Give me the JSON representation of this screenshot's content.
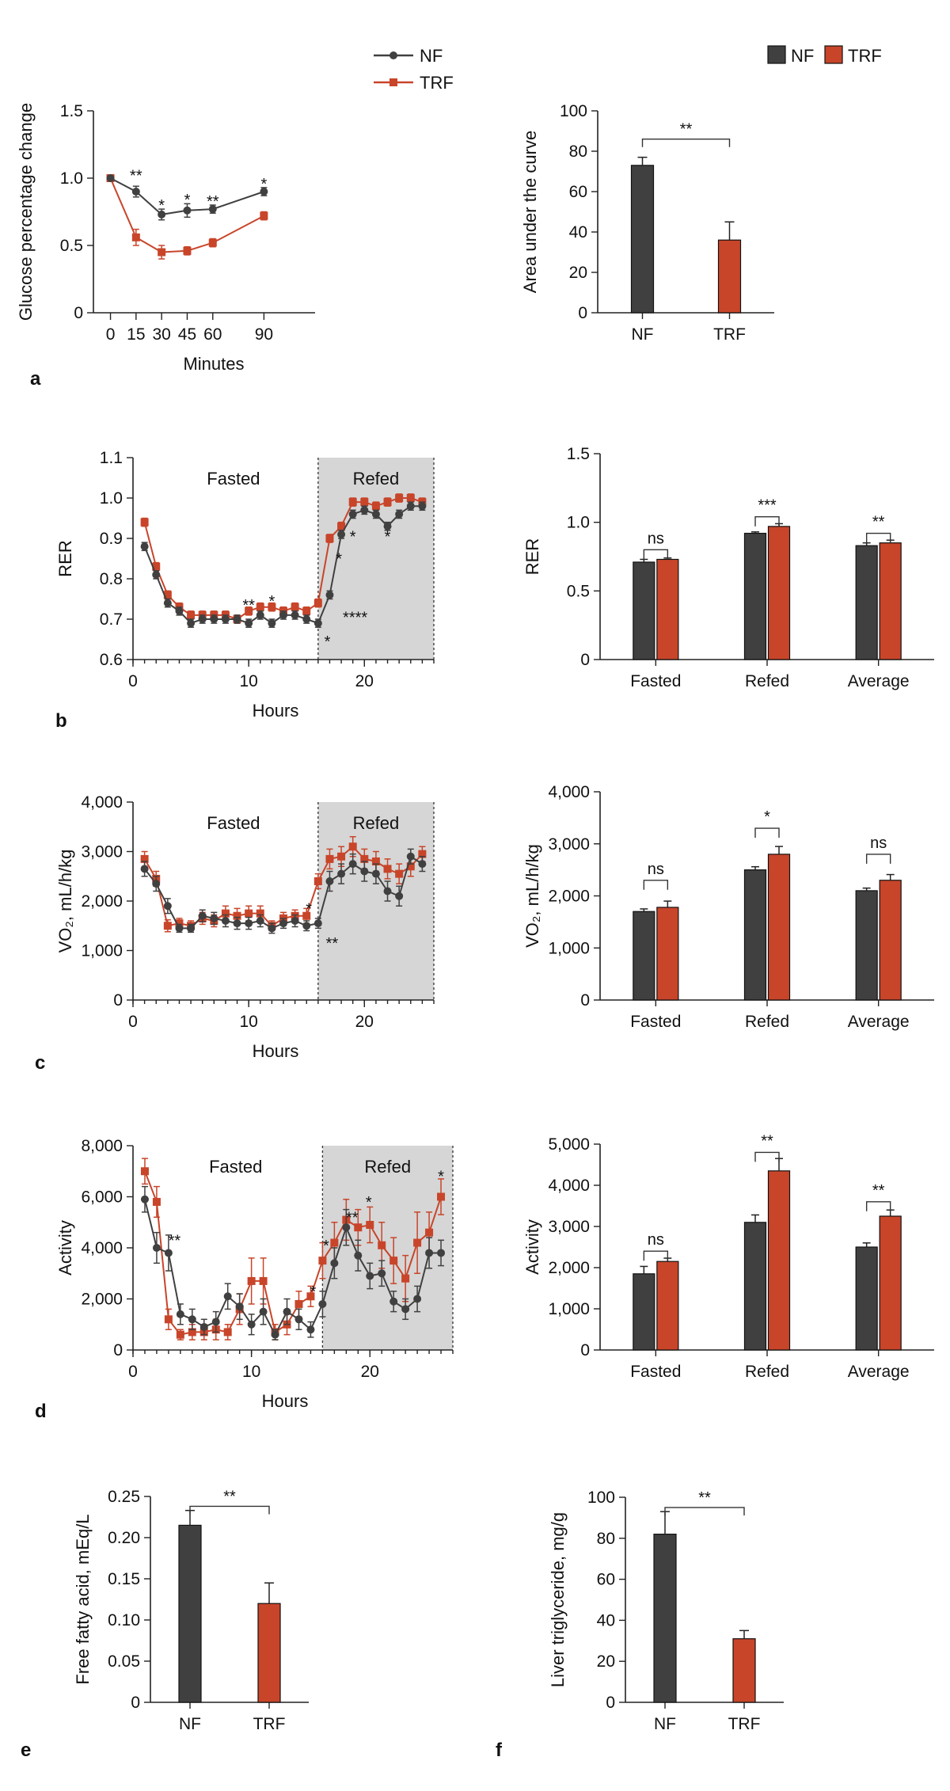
{
  "colors": {
    "NF": "#404040",
    "TRF": "#c8452a",
    "refed_shade": "#d6d6d6"
  },
  "legend_line": {
    "entries": [
      "NF",
      "TRF"
    ]
  },
  "legend_bar": {
    "entries": [
      "NF",
      "TRF"
    ]
  },
  "chart_data": [
    {
      "id": "a-line",
      "panel": "a",
      "type": "line",
      "xlabel": "Minutes",
      "ylabel": "Glucose percentage change",
      "xlim": [
        -10,
        120
      ],
      "ylim": [
        0,
        1.5
      ],
      "xticks": [
        0,
        15,
        30,
        45,
        60,
        90
      ],
      "xtick_labels": [
        "0",
        "15",
        "30",
        "45",
        "60",
        "90"
      ],
      "yticks": [
        0,
        0.5,
        1.0,
        1.5
      ],
      "ytick_labels": [
        "0",
        "0.5",
        "1.0",
        "1.5"
      ],
      "series": [
        {
          "name": "NF",
          "x": [
            0,
            15,
            30,
            45,
            60,
            90
          ],
          "y": [
            1.0,
            0.9,
            0.73,
            0.76,
            0.77,
            0.9
          ],
          "err": [
            0,
            0.04,
            0.04,
            0.05,
            0.03,
            0.03
          ]
        },
        {
          "name": "TRF",
          "x": [
            0,
            15,
            30,
            45,
            60,
            90
          ],
          "y": [
            1.0,
            0.56,
            0.45,
            0.46,
            0.52,
            0.72
          ],
          "err": [
            0,
            0.06,
            0.05,
            0.03,
            0.03,
            0.03
          ]
        }
      ],
      "annotations": [
        {
          "x": 15,
          "y": 1.02,
          "text": "**"
        },
        {
          "x": 30,
          "y": 0.8,
          "text": "*"
        },
        {
          "x": 45,
          "y": 0.84,
          "text": "*"
        },
        {
          "x": 60,
          "y": 0.83,
          "text": "**"
        },
        {
          "x": 90,
          "y": 0.96,
          "text": "*"
        }
      ]
    },
    {
      "id": "a-bar",
      "panel": "a",
      "type": "bar",
      "ylabel": "Area under the curve",
      "ylim": [
        0,
        100
      ],
      "yticks": [
        0,
        20,
        40,
        60,
        80,
        100
      ],
      "ytick_labels": [
        "0",
        "20",
        "40",
        "60",
        "80",
        "100"
      ],
      "categories": [
        "NF",
        "TRF"
      ],
      "values": [
        73,
        36
      ],
      "err": [
        4,
        9
      ],
      "brackets": [
        {
          "from": 0,
          "to": 1,
          "y": 86,
          "text": "**"
        }
      ]
    },
    {
      "id": "b-line",
      "panel": "b",
      "type": "line",
      "xlabel": "Hours",
      "ylabel": "RER",
      "xlim": [
        0,
        26
      ],
      "ylim": [
        0.6,
        1.1
      ],
      "xticks": [
        0,
        10,
        20
      ],
      "xtick_labels": [
        "0",
        "10",
        "20"
      ],
      "yticks": [
        0.6,
        0.7,
        0.8,
        0.9,
        1.0,
        1.1
      ],
      "ytick_labels": [
        "0.6",
        "0.7",
        "0.8",
        "0.9",
        "1.0",
        "1.1"
      ],
      "region_labels": {
        "fasted": "Fasted",
        "refed": "Refed"
      },
      "refed_span": [
        16,
        26
      ],
      "series": [
        {
          "name": "NF",
          "x": [
            1,
            2,
            3,
            4,
            5,
            6,
            7,
            8,
            9,
            10,
            11,
            12,
            13,
            14,
            15,
            16,
            17,
            18,
            19,
            20,
            21,
            22,
            23,
            24,
            25
          ],
          "y": [
            0.88,
            0.81,
            0.74,
            0.72,
            0.69,
            0.7,
            0.7,
            0.7,
            0.7,
            0.69,
            0.71,
            0.69,
            0.71,
            0.71,
            0.7,
            0.69,
            0.76,
            0.91,
            0.96,
            0.97,
            0.96,
            0.93,
            0.96,
            0.98,
            0.98
          ],
          "err": [
            0.01,
            0.01,
            0.01,
            0.01,
            0.01,
            0.01,
            0.01,
            0.01,
            0.01,
            0.01,
            0.01,
            0.01,
            0.01,
            0.01,
            0.01,
            0.01,
            0.01,
            0.01,
            0.01,
            0.01,
            0.01,
            0.01,
            0.01,
            0.01,
            0.01
          ]
        },
        {
          "name": "TRF",
          "x": [
            1,
            2,
            3,
            4,
            5,
            6,
            7,
            8,
            9,
            10,
            11,
            12,
            13,
            14,
            15,
            16,
            17,
            18,
            19,
            20,
            21,
            22,
            23,
            24,
            25
          ],
          "y": [
            0.94,
            0.83,
            0.76,
            0.73,
            0.71,
            0.71,
            0.71,
            0.71,
            0.7,
            0.72,
            0.73,
            0.73,
            0.72,
            0.73,
            0.72,
            0.74,
            0.9,
            0.93,
            0.99,
            0.99,
            0.98,
            0.99,
            1.0,
            1.0,
            0.99
          ],
          "err": [
            0.01,
            0.01,
            0.01,
            0.01,
            0.01,
            0.01,
            0.01,
            0.01,
            0.01,
            0.01,
            0.01,
            0.01,
            0.01,
            0.01,
            0.01,
            0.01,
            0.01,
            0.01,
            0.01,
            0.01,
            0.01,
            0.01,
            0.01,
            0.01,
            0.01
          ]
        }
      ],
      "annotations": [
        {
          "x": 10,
          "y": 0.735,
          "text": "**"
        },
        {
          "x": 12,
          "y": 0.745,
          "text": "*"
        },
        {
          "x": 17.8,
          "y": 0.85,
          "text": "*"
        },
        {
          "x": 19,
          "y": 0.905,
          "text": "*"
        },
        {
          "x": 22,
          "y": 0.905,
          "text": "*"
        },
        {
          "x": 19.2,
          "y": 0.705,
          "text": "****"
        },
        {
          "x": 16.8,
          "y": 0.645,
          "text": "*"
        }
      ]
    },
    {
      "id": "b-bar",
      "panel": "b",
      "type": "bar",
      "ylabel": "RER",
      "ylim": [
        0,
        1.5
      ],
      "yticks": [
        0,
        0.5,
        1.0,
        1.5
      ],
      "ytick_labels": [
        "0",
        "0.5",
        "1.0",
        "1.5"
      ],
      "categories": [
        "Fasted",
        "Refed",
        "Average"
      ],
      "series": [
        {
          "name": "NF",
          "values": [
            0.71,
            0.92,
            0.83
          ],
          "err": [
            0.02,
            0.01,
            0.02
          ]
        },
        {
          "name": "TRF",
          "values": [
            0.73,
            0.97,
            0.85
          ],
          "err": [
            0.01,
            0.02,
            0.02
          ]
        }
      ],
      "brackets": [
        {
          "group": 0,
          "y": 0.8,
          "text": "ns"
        },
        {
          "group": 1,
          "y": 1.04,
          "text": "***"
        },
        {
          "group": 2,
          "y": 0.92,
          "text": "**"
        }
      ]
    },
    {
      "id": "c-line",
      "panel": "c",
      "type": "line",
      "xlabel": "Hours",
      "ylabel": "VO₂, mL/h/kg",
      "xlim": [
        0,
        26
      ],
      "ylim": [
        0,
        4000
      ],
      "xticks": [
        0,
        10,
        20
      ],
      "xtick_labels": [
        "0",
        "10",
        "20"
      ],
      "yticks": [
        0,
        1000,
        2000,
        3000,
        4000
      ],
      "ytick_labels": [
        "0",
        "1,000",
        "2,000",
        "3,000",
        "4,000"
      ],
      "region_labels": {
        "fasted": "Fasted",
        "refed": "Refed"
      },
      "refed_span": [
        16,
        26
      ],
      "series": [
        {
          "name": "NF",
          "x": [
            1,
            2,
            3,
            4,
            5,
            6,
            7,
            8,
            9,
            10,
            11,
            12,
            13,
            14,
            15,
            16,
            17,
            18,
            19,
            20,
            21,
            22,
            23,
            24,
            25
          ],
          "y": [
            2650,
            2350,
            1900,
            1450,
            1450,
            1700,
            1650,
            1600,
            1550,
            1550,
            1600,
            1450,
            1550,
            1600,
            1500,
            1550,
            2400,
            2550,
            2750,
            2600,
            2550,
            2200,
            2100,
            2900,
            2750
          ],
          "err": [
            150,
            150,
            150,
            80,
            80,
            120,
            120,
            120,
            120,
            120,
            120,
            100,
            100,
            120,
            100,
            100,
            200,
            200,
            200,
            200,
            200,
            200,
            200,
            150,
            150
          ]
        },
        {
          "name": "TRF",
          "x": [
            1,
            2,
            3,
            4,
            5,
            6,
            7,
            8,
            9,
            10,
            11,
            12,
            13,
            14,
            15,
            16,
            17,
            18,
            19,
            20,
            21,
            22,
            23,
            24,
            25
          ],
          "y": [
            2850,
            2450,
            1500,
            1550,
            1500,
            1650,
            1600,
            1750,
            1700,
            1750,
            1750,
            1500,
            1650,
            1700,
            1700,
            2400,
            2850,
            2900,
            3100,
            2850,
            2800,
            2650,
            2550,
            2700,
            2950
          ],
          "err": [
            150,
            150,
            120,
            100,
            100,
            120,
            120,
            150,
            150,
            150,
            150,
            100,
            120,
            120,
            150,
            150,
            200,
            200,
            200,
            200,
            200,
            200,
            200,
            200,
            150
          ]
        }
      ],
      "annotations": [
        {
          "x": 15.2,
          "y": 1850,
          "text": "*"
        },
        {
          "x": 17.2,
          "y": 1150,
          "text": "**"
        }
      ]
    },
    {
      "id": "c-bar",
      "panel": "c",
      "type": "bar",
      "ylabel": "VO₂, mL/h/kg",
      "ylim": [
        0,
        4000
      ],
      "yticks": [
        0,
        1000,
        2000,
        3000,
        4000
      ],
      "ytick_labels": [
        "0",
        "1,000",
        "2,000",
        "3,000",
        "4,000"
      ],
      "categories": [
        "Fasted",
        "Refed",
        "Average"
      ],
      "series": [
        {
          "name": "NF",
          "values": [
            1700,
            2500,
            2100
          ],
          "err": [
            50,
            60,
            50
          ]
        },
        {
          "name": "TRF",
          "values": [
            1780,
            2800,
            2300
          ],
          "err": [
            120,
            150,
            110
          ]
        }
      ],
      "brackets": [
        {
          "group": 0,
          "y": 2300,
          "text": "ns"
        },
        {
          "group": 1,
          "y": 3300,
          "text": "*"
        },
        {
          "group": 2,
          "y": 2800,
          "text": "ns"
        }
      ]
    },
    {
      "id": "d-line",
      "panel": "d",
      "type": "line",
      "xlabel": "Hours",
      "ylabel": "Activity",
      "xlim": [
        0,
        27
      ],
      "ylim": [
        0,
        8000
      ],
      "xticks": [
        0,
        10,
        20
      ],
      "xtick_labels": [
        "0",
        "10",
        "20"
      ],
      "yticks": [
        0,
        2000,
        4000,
        6000,
        8000
      ],
      "ytick_labels": [
        "0",
        "2,000",
        "4,000",
        "6,000",
        "8,000"
      ],
      "region_labels": {
        "fasted": "Fasted",
        "refed": "Refed"
      },
      "refed_span": [
        16,
        27
      ],
      "series": [
        {
          "name": "NF",
          "x": [
            1,
            2,
            3,
            4,
            5,
            6,
            7,
            8,
            9,
            10,
            11,
            12,
            13,
            14,
            15,
            16,
            17,
            18,
            19,
            20,
            21,
            22,
            23,
            24,
            25,
            26
          ],
          "y": [
            5900,
            4000,
            3800,
            1400,
            1200,
            900,
            1100,
            2100,
            1700,
            1000,
            1500,
            600,
            1500,
            1200,
            800,
            1800,
            3400,
            4800,
            3700,
            2900,
            3000,
            1900,
            1600,
            2000,
            3800,
            3800
          ],
          "err": [
            500,
            600,
            700,
            400,
            400,
            300,
            400,
            500,
            500,
            400,
            500,
            200,
            500,
            400,
            300,
            500,
            600,
            700,
            600,
            500,
            500,
            400,
            400,
            500,
            600,
            500
          ]
        },
        {
          "name": "TRF",
          "x": [
            1,
            2,
            3,
            4,
            5,
            6,
            7,
            8,
            9,
            10,
            11,
            12,
            13,
            14,
            15,
            16,
            17,
            18,
            19,
            20,
            21,
            22,
            23,
            24,
            25,
            26
          ],
          "y": [
            7000,
            5800,
            1200,
            600,
            700,
            700,
            800,
            700,
            1600,
            2700,
            2700,
            700,
            1000,
            1800,
            2100,
            3500,
            4200,
            5100,
            4800,
            4900,
            4100,
            3500,
            2800,
            4200,
            4600,
            6000
          ],
          "err": [
            500,
            600,
            400,
            200,
            300,
            300,
            400,
            300,
            600,
            900,
            900,
            300,
            400,
            500,
            400,
            700,
            800,
            800,
            700,
            700,
            900,
            900,
            900,
            1200,
            800,
            700
          ]
        }
      ],
      "annotations": [
        {
          "x": 3.5,
          "y": 4300,
          "text": "**"
        },
        {
          "x": 15.2,
          "y": 2300,
          "text": "*"
        },
        {
          "x": 16.3,
          "y": 4100,
          "text": "*"
        },
        {
          "x": 18.5,
          "y": 5200,
          "text": "**"
        },
        {
          "x": 19.9,
          "y": 5800,
          "text": "*"
        },
        {
          "x": 26,
          "y": 6800,
          "text": "*"
        }
      ]
    },
    {
      "id": "d-bar",
      "panel": "d",
      "type": "bar",
      "ylabel": "Activity",
      "ylim": [
        0,
        5000
      ],
      "yticks": [
        0,
        1000,
        2000,
        3000,
        4000,
        5000
      ],
      "ytick_labels": [
        "0",
        "1,000",
        "2,000",
        "3,000",
        "4,000",
        "5,000"
      ],
      "categories": [
        "Fasted",
        "Refed",
        "Average"
      ],
      "series": [
        {
          "name": "NF",
          "values": [
            1850,
            3100,
            2500
          ],
          "err": [
            180,
            180,
            100
          ]
        },
        {
          "name": "TRF",
          "values": [
            2150,
            4350,
            3250
          ],
          "err": [
            80,
            300,
            150
          ]
        }
      ],
      "brackets": [
        {
          "group": 0,
          "y": 2400,
          "text": "ns"
        },
        {
          "group": 1,
          "y": 4800,
          "text": "**"
        },
        {
          "group": 2,
          "y": 3600,
          "text": "**"
        }
      ]
    },
    {
      "id": "e-bar",
      "panel": "e",
      "type": "bar",
      "ylabel": "Free fatty acid, mEq/L",
      "ylim": [
        0,
        0.25
      ],
      "yticks": [
        0,
        0.05,
        0.1,
        0.15,
        0.2,
        0.25
      ],
      "ytick_labels": [
        "0",
        "0.05",
        "0.10",
        "0.15",
        "0.20",
        "0.25"
      ],
      "categories": [
        "NF",
        "TRF"
      ],
      "values": [
        0.215,
        0.12
      ],
      "err": [
        0.018,
        0.025
      ],
      "brackets": [
        {
          "from": 0,
          "to": 1,
          "y": 0.238,
          "text": "**"
        }
      ]
    },
    {
      "id": "f-bar",
      "panel": "f",
      "type": "bar",
      "ylabel": "Liver triglyceride, mg/g",
      "ylim": [
        0,
        100
      ],
      "yticks": [
        0,
        20,
        40,
        60,
        80,
        100
      ],
      "ytick_labels": [
        "0",
        "20",
        "40",
        "60",
        "80",
        "100"
      ],
      "categories": [
        "NF",
        "TRF"
      ],
      "values": [
        82,
        31
      ],
      "err": [
        11,
        4
      ],
      "brackets": [
        {
          "from": 0,
          "to": 1,
          "y": 95,
          "text": "**"
        }
      ]
    }
  ]
}
